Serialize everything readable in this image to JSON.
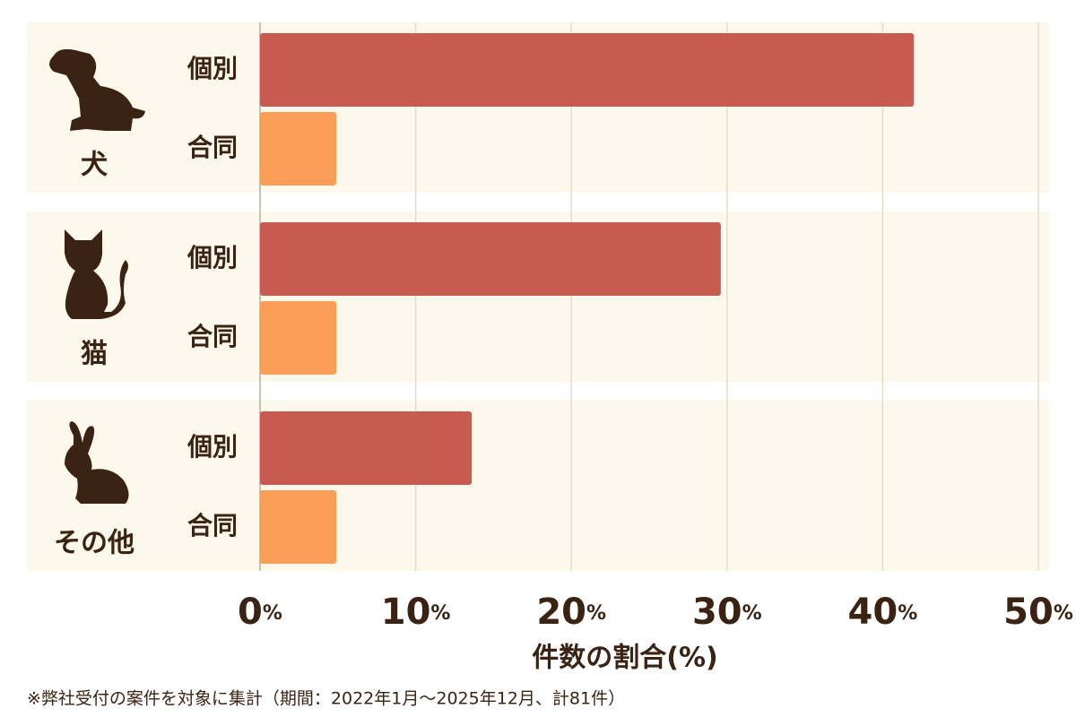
{
  "chart_data": {
    "type": "grouped-bar-horizontal",
    "categories": [
      "犬",
      "猫",
      "その他"
    ],
    "series": [
      {
        "name": "個別",
        "color": "#c85b4f",
        "values": [
          42.0,
          29.6,
          13.6
        ]
      },
      {
        "name": "合同",
        "color": "#fb9f58",
        "values": [
          4.9,
          4.9,
          4.9
        ]
      }
    ],
    "xlim": [
      0,
      50
    ],
    "xticks": [
      {
        "value": 0,
        "label": "0%"
      },
      {
        "value": 10,
        "label": "10%"
      },
      {
        "value": 20,
        "label": "20%"
      },
      {
        "value": 30,
        "label": "30%"
      },
      {
        "value": 40,
        "label": "40%"
      },
      {
        "value": 50,
        "label": "50%"
      }
    ],
    "x_label": "件数の割合(%)",
    "note": "※弊社受付の案件を対象に集計（期間：2022年1月～2025年12月、計81件）",
    "grid": true
  }
}
